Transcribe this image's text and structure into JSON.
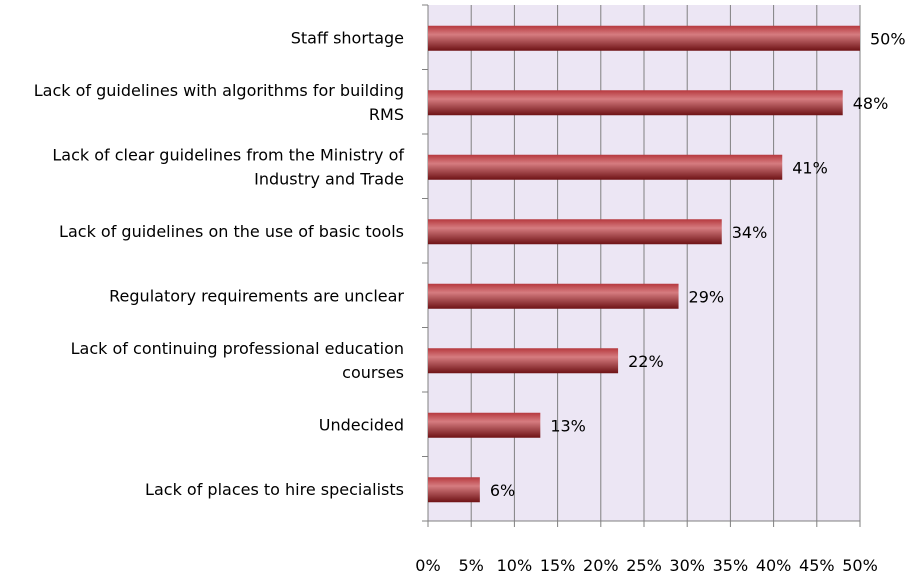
{
  "chart_data": {
    "type": "bar",
    "orientation": "horizontal",
    "categories": [
      "Staff shortage",
      "Lack of guidelines with algorithms for building RMS",
      "Lack of clear guidelines from the Ministry of Industry and Trade",
      "Lack of guidelines on the use of basic tools",
      "Regulatory requirements are unclear",
      "Lack of continuing professional education courses",
      "Undecided",
      "Lack of places to hire specialists"
    ],
    "category_lines": [
      [
        "Staff shortage"
      ],
      [
        "Lack of guidelines with algorithms for building",
        "RMS"
      ],
      [
        "Lack of clear guidelines from the Ministry of",
        "Industry and Trade"
      ],
      [
        "Lack of guidelines on the use of basic tools"
      ],
      [
        "Regulatory requirements are unclear"
      ],
      [
        "Lack of continuing professional education",
        "courses"
      ],
      [
        "Undecided"
      ],
      [
        "Lack of places to hire specialists"
      ]
    ],
    "values": [
      50,
      48,
      41,
      34,
      29,
      22,
      13,
      6
    ],
    "value_labels": [
      "50%",
      "48%",
      "41%",
      "34%",
      "29%",
      "22%",
      "13%",
      "6%"
    ],
    "xlim": [
      0,
      50
    ],
    "xticks": [
      0,
      5,
      10,
      15,
      20,
      25,
      30,
      35,
      40,
      45,
      50
    ],
    "xtick_labels": [
      "0%",
      "5%",
      "10%",
      "15%",
      "20%",
      "25%",
      "30%",
      "35%",
      "40%",
      "45%",
      "50%"
    ],
    "grid": true,
    "legend": "none",
    "colors": {
      "plot_background": "#ECE6F4",
      "bar_dark": "#6E1215",
      "bar_mid": "#B6393E",
      "bar_light": "#D67C80",
      "gridline": "#808080"
    }
  }
}
